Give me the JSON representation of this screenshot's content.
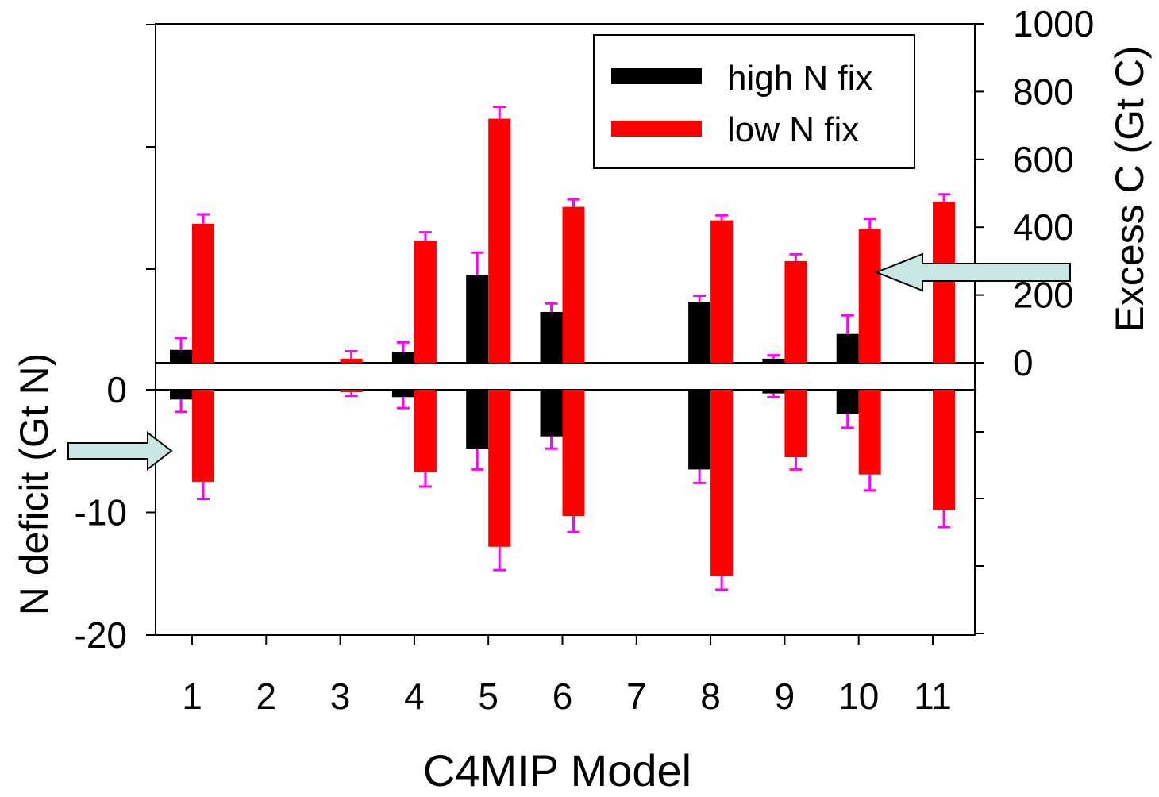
{
  "chart_data": {
    "type": "bar",
    "xlabel": "C4MIP Model",
    "categories": [
      "1",
      "2",
      "3",
      "4",
      "5",
      "6",
      "7",
      "8",
      "9",
      "10",
      "11"
    ],
    "legend": {
      "placement": "top-right",
      "entries": [
        "high N fix",
        "low N fix"
      ]
    },
    "colors": {
      "high": "#000000",
      "low": "#ff0000",
      "errorbar": "#ff00ff",
      "arrow_fill": "#c8e6e6",
      "frame": "#000000"
    },
    "upper_panel": {
      "ylabel": "Excess C (Gt C)",
      "axis_side": "right",
      "ylim": [
        0,
        1000
      ],
      "yticks": [
        "0",
        "200",
        "400",
        "600",
        "800",
        "1000"
      ],
      "series": [
        {
          "name": "high N fix",
          "values": [
            38,
            null,
            null,
            32,
            260,
            150,
            null,
            180,
            12,
            85,
            null
          ],
          "errors": [
            35,
            null,
            null,
            28,
            65,
            25,
            null,
            18,
            10,
            55,
            null
          ]
        },
        {
          "name": "low N fix",
          "values": [
            410,
            null,
            12,
            360,
            720,
            460,
            null,
            420,
            300,
            395,
            475
          ],
          "errors": [
            28,
            null,
            22,
            25,
            35,
            22,
            null,
            15,
            20,
            30,
            22
          ]
        }
      ]
    },
    "lower_panel": {
      "ylabel": "N deficit (Gt N)",
      "axis_side": "left",
      "ylim": [
        -20,
        0
      ],
      "yticks": [
        "0",
        "-10",
        "-20"
      ],
      "series": [
        {
          "name": "high N fix",
          "values": [
            -0.8,
            null,
            null,
            -0.6,
            -4.8,
            -3.8,
            null,
            -6.5,
            -0.3,
            -2.0,
            null
          ],
          "errors": [
            1.0,
            null,
            null,
            0.9,
            1.7,
            1.0,
            null,
            1.1,
            0.3,
            1.1,
            null
          ]
        },
        {
          "name": "low N fix",
          "values": [
            -7.5,
            null,
            -0.2,
            -6.7,
            -12.8,
            -10.3,
            null,
            -15.2,
            -5.5,
            -6.9,
            -9.8
          ],
          "errors": [
            1.4,
            null,
            0.3,
            1.2,
            1.9,
            1.3,
            null,
            1.1,
            1.0,
            1.3,
            1.4
          ]
        }
      ]
    }
  }
}
